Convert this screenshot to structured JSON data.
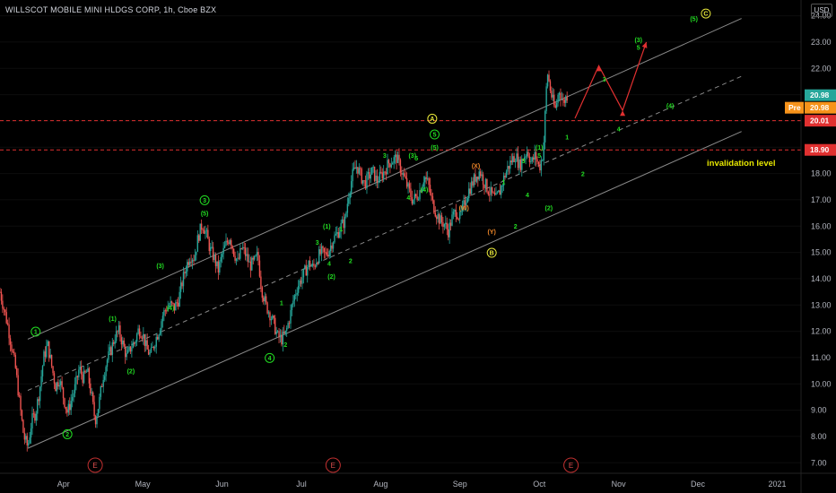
{
  "header": {
    "title": "WILLSCOT MOBILE MINI HLDGS CORP, 1h, Cboe BZX",
    "currency": "USD"
  },
  "price_tags": {
    "last": "20.98",
    "pre_label": "Pre",
    "pre": "20.98",
    "level_a": "20.01",
    "level_b": "18.90"
  },
  "colors": {
    "background": "#000000",
    "up": "#26a69a",
    "down": "#ef5350",
    "wave_green": "#22dd22",
    "wave_yellow": "#e8e83a",
    "wave_orange": "#f0882a",
    "level_line": "#e03030",
    "projection": "#e03030",
    "channel": "#8a8a8a",
    "invalidation_text": "#e6e600"
  },
  "chart_data": {
    "type": "candlestick",
    "title": "WILLSCOT MOBILE MINI HLDGS CORP, 1h, Cboe BZX",
    "ylim": [
      6.6,
      24.6
    ],
    "y_ticks": [
      "7.00",
      "8.00",
      "9.00",
      "10.00",
      "11.00",
      "12.00",
      "13.00",
      "14.00",
      "15.00",
      "16.00",
      "17.00",
      "18.00",
      "19.00",
      "20.00",
      "21.00",
      "22.00",
      "23.00",
      "24.00"
    ],
    "x_ticks": [
      "Apr",
      "May",
      "Jun",
      "Jul",
      "Aug",
      "Sep",
      "Oct",
      "Nov",
      "Dec",
      "2021"
    ],
    "x_tick_pos": [
      0.5,
      1.5,
      2.5,
      3.5,
      4.5,
      5.5,
      6.5,
      7.5,
      8.5,
      9.5
    ],
    "xlim": [
      -0.3,
      9.8
    ],
    "price_path": [
      [
        -0.3,
        13.5
      ],
      [
        -0.2,
        12.2
      ],
      [
        -0.1,
        10.5
      ],
      [
        -0.05,
        9.2
      ],
      [
        0.0,
        8.0
      ],
      [
        0.05,
        7.6
      ],
      [
        0.1,
        8.6
      ],
      [
        0.15,
        8.9
      ],
      [
        0.2,
        9.8
      ],
      [
        0.25,
        11.0
      ],
      [
        0.3,
        11.5
      ],
      [
        0.35,
        10.7
      ],
      [
        0.4,
        9.9
      ],
      [
        0.45,
        10.2
      ],
      [
        0.5,
        9.5
      ],
      [
        0.55,
        8.9
      ],
      [
        0.6,
        9.4
      ],
      [
        0.65,
        9.9
      ],
      [
        0.7,
        10.6
      ],
      [
        0.75,
        10.2
      ],
      [
        0.8,
        10.5
      ],
      [
        0.85,
        9.6
      ],
      [
        0.9,
        8.6
      ],
      [
        0.95,
        9.3
      ],
      [
        1.0,
        10.3
      ],
      [
        1.05,
        10.9
      ],
      [
        1.1,
        11.3
      ],
      [
        1.15,
        11.8
      ],
      [
        1.2,
        12.0
      ],
      [
        1.25,
        11.5
      ],
      [
        1.3,
        11.0
      ],
      [
        1.35,
        11.4
      ],
      [
        1.4,
        11.6
      ],
      [
        1.45,
        12.1
      ],
      [
        1.5,
        11.9
      ],
      [
        1.55,
        11.3
      ],
      [
        1.6,
        11.1
      ],
      [
        1.65,
        11.6
      ],
      [
        1.7,
        12.0
      ],
      [
        1.75,
        12.6
      ],
      [
        1.8,
        12.9
      ],
      [
        1.85,
        13.0
      ],
      [
        1.9,
        12.9
      ],
      [
        1.95,
        13.2
      ],
      [
        2.0,
        13.9
      ],
      [
        2.05,
        14.5
      ],
      [
        2.1,
        14.9
      ],
      [
        2.15,
        14.8
      ],
      [
        2.2,
        15.6
      ],
      [
        2.25,
        16.1
      ],
      [
        2.3,
        15.7
      ],
      [
        2.35,
        15.1
      ],
      [
        2.4,
        14.8
      ],
      [
        2.45,
        14.3
      ],
      [
        2.5,
        14.9
      ],
      [
        2.55,
        15.3
      ],
      [
        2.6,
        15.6
      ],
      [
        2.65,
        15.0
      ],
      [
        2.7,
        14.6
      ],
      [
        2.75,
        15.2
      ],
      [
        2.8,
        14.9
      ],
      [
        2.85,
        14.5
      ],
      [
        2.9,
        14.6
      ],
      [
        2.95,
        14.9
      ],
      [
        3.0,
        13.6
      ],
      [
        3.05,
        13.0
      ],
      [
        3.1,
        12.7
      ],
      [
        3.15,
        12.3
      ],
      [
        3.2,
        11.8
      ],
      [
        3.25,
        11.7
      ],
      [
        3.3,
        11.9
      ],
      [
        3.35,
        12.5
      ],
      [
        3.4,
        13.2
      ],
      [
        3.45,
        13.7
      ],
      [
        3.5,
        14.0
      ],
      [
        3.55,
        14.3
      ],
      [
        3.6,
        14.6
      ],
      [
        3.65,
        14.4
      ],
      [
        3.7,
        14.8
      ],
      [
        3.75,
        15.0
      ],
      [
        3.8,
        14.9
      ],
      [
        3.85,
        15.1
      ],
      [
        3.9,
        15.5
      ],
      [
        3.95,
        15.7
      ],
      [
        4.0,
        16.0
      ],
      [
        4.05,
        16.2
      ],
      [
        4.1,
        17.3
      ],
      [
        4.15,
        18.0
      ],
      [
        4.2,
        18.3
      ],
      [
        4.25,
        17.9
      ],
      [
        4.3,
        17.6
      ],
      [
        4.35,
        17.9
      ],
      [
        4.4,
        18.1
      ],
      [
        4.45,
        17.7
      ],
      [
        4.5,
        17.9
      ],
      [
        4.55,
        18.1
      ],
      [
        4.6,
        18.4
      ],
      [
        4.65,
        18.5
      ],
      [
        4.7,
        18.6
      ],
      [
        4.75,
        18.2
      ],
      [
        4.8,
        17.8
      ],
      [
        4.85,
        17.4
      ],
      [
        4.9,
        17.0
      ],
      [
        4.95,
        17.1
      ],
      [
        5.0,
        17.4
      ],
      [
        5.05,
        17.9
      ],
      [
        5.1,
        17.6
      ],
      [
        5.15,
        16.9
      ],
      [
        5.2,
        16.5
      ],
      [
        5.25,
        16.2
      ],
      [
        5.3,
        16.1
      ],
      [
        5.35,
        15.8
      ],
      [
        5.4,
        16.3
      ],
      [
        5.45,
        16.6
      ],
      [
        5.5,
        16.3
      ],
      [
        5.55,
        16.8
      ],
      [
        5.6,
        17.3
      ],
      [
        5.65,
        17.6
      ],
      [
        5.7,
        17.9
      ],
      [
        5.75,
        18.1
      ],
      [
        5.8,
        17.7
      ],
      [
        5.85,
        17.4
      ],
      [
        5.9,
        17.2
      ],
      [
        5.95,
        17.0
      ],
      [
        6.0,
        17.3
      ],
      [
        6.05,
        17.8
      ],
      [
        6.1,
        18.2
      ],
      [
        6.15,
        18.5
      ],
      [
        6.2,
        18.7
      ],
      [
        6.25,
        18.3
      ],
      [
        6.3,
        18.6
      ],
      [
        6.35,
        18.9
      ],
      [
        6.4,
        18.4
      ],
      [
        6.45,
        18.7
      ],
      [
        6.5,
        18.2
      ],
      [
        6.55,
        18.8
      ],
      [
        6.6,
        21.9
      ],
      [
        6.65,
        21.0
      ],
      [
        6.7,
        20.4
      ],
      [
        6.75,
        21.2
      ],
      [
        6.8,
        20.7
      ],
      [
        6.85,
        20.98
      ]
    ],
    "level_lines": [
      20.01,
      18.9
    ],
    "channel_lines": [
      {
        "from": [
          0.05,
          11.7
        ],
        "to": [
          9.05,
          23.9
        ]
      },
      {
        "from": [
          0.05,
          9.75
        ],
        "to": [
          9.05,
          21.7
        ]
      },
      {
        "from": [
          0.05,
          7.55
        ],
        "to": [
          9.05,
          19.6
        ]
      }
    ],
    "projection_path": [
      [
        6.95,
        20.1
      ],
      [
        7.25,
        22.1
      ],
      [
        7.55,
        20.4
      ],
      [
        7.85,
        23.0
      ]
    ],
    "annotations": {
      "invalidation_text": "invalidation level",
      "event_marker": "E",
      "event_x": [
        0.9,
        3.9,
        6.9
      ]
    },
    "wave_labels": [
      {
        "t": "1",
        "x": 0.15,
        "y": 11.9,
        "c": "green",
        "circle": true
      },
      {
        "t": "2",
        "x": 0.55,
        "y": 8.0,
        "c": "green",
        "circle": true
      },
      {
        "t": "(1)",
        "x": 1.12,
        "y": 12.4,
        "c": "green"
      },
      {
        "t": "(2)",
        "x": 1.35,
        "y": 10.4,
        "c": "green"
      },
      {
        "t": "(3)",
        "x": 1.72,
        "y": 14.4,
        "c": "green"
      },
      {
        "t": "(4)",
        "x": 1.85,
        "y": 12.8,
        "c": "green"
      },
      {
        "t": "3",
        "x": 2.28,
        "y": 16.9,
        "c": "green",
        "circle": true
      },
      {
        "t": "(5)",
        "x": 2.28,
        "y": 16.4,
        "c": "green"
      },
      {
        "t": "1",
        "x": 3.25,
        "y": 13.0,
        "c": "green"
      },
      {
        "t": "2",
        "x": 3.3,
        "y": 11.4,
        "c": "green"
      },
      {
        "t": "4",
        "x": 3.1,
        "y": 10.9,
        "c": "green",
        "circle": true
      },
      {
        "t": "3",
        "x": 3.7,
        "y": 15.3,
        "c": "green"
      },
      {
        "t": "(1)",
        "x": 3.82,
        "y": 15.9,
        "c": "green"
      },
      {
        "t": "(2)",
        "x": 3.88,
        "y": 14.0,
        "c": "green"
      },
      {
        "t": "1",
        "x": 4.0,
        "y": 15.8,
        "c": "green"
      },
      {
        "t": "2",
        "x": 4.12,
        "y": 14.6,
        "c": "green"
      },
      {
        "t": "4",
        "x": 3.85,
        "y": 14.5,
        "c": "green"
      },
      {
        "t": "3",
        "x": 4.55,
        "y": 18.6,
        "c": "green"
      },
      {
        "t": "(3)",
        "x": 4.9,
        "y": 18.6,
        "c": "green"
      },
      {
        "t": "5",
        "x": 4.95,
        "y": 18.5,
        "c": "green"
      },
      {
        "t": "4",
        "x": 4.85,
        "y": 17.0,
        "c": "green"
      },
      {
        "t": "(4)",
        "x": 5.05,
        "y": 17.3,
        "c": "green"
      },
      {
        "t": "5",
        "x": 5.18,
        "y": 19.4,
        "c": "green",
        "circle": true
      },
      {
        "t": "(5)",
        "x": 5.18,
        "y": 18.9,
        "c": "green"
      },
      {
        "t": "A",
        "x": 5.15,
        "y": 20.0,
        "c": "yellow",
        "circle": true
      },
      {
        "t": "(X)",
        "x": 5.7,
        "y": 18.2,
        "c": "orange"
      },
      {
        "t": "(W)",
        "x": 5.55,
        "y": 16.6,
        "c": "orange"
      },
      {
        "t": "(Y)",
        "x": 5.9,
        "y": 15.7,
        "c": "orange"
      },
      {
        "t": "B",
        "x": 5.9,
        "y": 14.9,
        "c": "yellow",
        "circle": true
      },
      {
        "t": "1",
        "x": 6.05,
        "y": 17.6,
        "c": "green"
      },
      {
        "t": "2",
        "x": 6.2,
        "y": 15.9,
        "c": "green"
      },
      {
        "t": "3",
        "x": 6.3,
        "y": 18.4,
        "c": "green"
      },
      {
        "t": "4",
        "x": 6.35,
        "y": 17.1,
        "c": "green"
      },
      {
        "t": "(1)",
        "x": 6.5,
        "y": 18.9,
        "c": "green"
      },
      {
        "t": "5",
        "x": 6.5,
        "y": 18.6,
        "c": "green"
      },
      {
        "t": "(2)",
        "x": 6.62,
        "y": 16.6,
        "c": "green"
      },
      {
        "t": "1",
        "x": 6.85,
        "y": 19.3,
        "c": "green"
      },
      {
        "t": "2",
        "x": 7.05,
        "y": 17.9,
        "c": "green"
      },
      {
        "t": "3",
        "x": 7.32,
        "y": 21.5,
        "c": "green"
      },
      {
        "t": "4",
        "x": 7.5,
        "y": 19.6,
        "c": "green"
      },
      {
        "t": "(3)",
        "x": 7.75,
        "y": 23.0,
        "c": "green"
      },
      {
        "t": "5",
        "x": 7.75,
        "y": 22.7,
        "c": "green"
      },
      {
        "t": "(4)",
        "x": 8.15,
        "y": 20.5,
        "c": "green"
      },
      {
        "t": "(5)",
        "x": 8.45,
        "y": 23.8,
        "c": "green"
      },
      {
        "t": "C",
        "x": 8.6,
        "y": 24.0,
        "c": "yellow",
        "circle": true
      }
    ]
  }
}
